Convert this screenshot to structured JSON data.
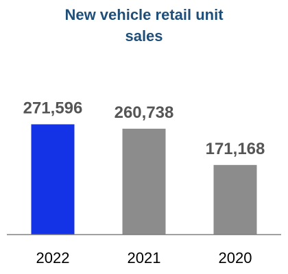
{
  "chart_data": {
    "type": "bar",
    "title": "New vehicle retail unit\nsales",
    "categories": [
      "2022",
      "2021",
      "2020"
    ],
    "values": [
      271596,
      260738,
      171168
    ],
    "value_labels": [
      "271,596",
      "260,738",
      "171,168"
    ],
    "xlabel": "",
    "ylabel": "",
    "ylim": [
      0,
      291000
    ],
    "grid": false,
    "legend": "none",
    "colors": {
      "title": "#1f4e79",
      "bars": [
        "#1432e6",
        "#8c8c8c",
        "#8c8c8c"
      ],
      "value_label": "#555555",
      "tick_label": "#000000",
      "axis": "#7f7f7f"
    }
  }
}
